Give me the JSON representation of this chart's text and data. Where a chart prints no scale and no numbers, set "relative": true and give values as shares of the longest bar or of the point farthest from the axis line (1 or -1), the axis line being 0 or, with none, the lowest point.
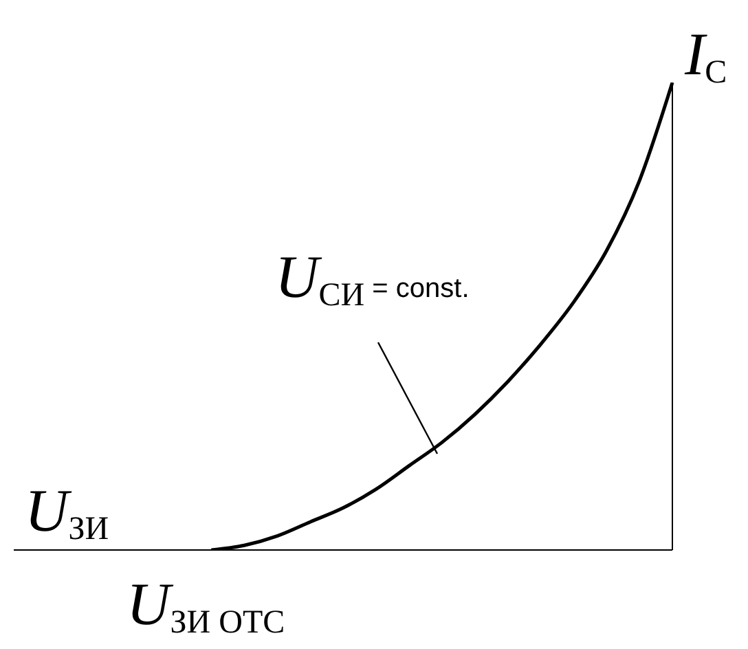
{
  "chart_data": {
    "type": "line",
    "relative": true,
    "xlabel": "U$_{ЗИ}$",
    "ylabel": "I$_{C}$",
    "annotations": [
      "U$_{СИ}$ = const.",
      "U$_{ЗИ ОТС}$"
    ],
    "categories": [
      null,
      null,
      null,
      null,
      null,
      null,
      null,
      null,
      null,
      null,
      null,
      null,
      null,
      null,
      null,
      null,
      null,
      null,
      null,
      null,
      null
    ],
    "series": [
      {
        "color": "#000000",
        "values": [
          null,
          null,
          null,
          null,
          null,
          null,
          0,
          0.01,
          0.03,
          0.06,
          0.09,
          0.13,
          0.18,
          0.23,
          0.29,
          0.36,
          0.44,
          0.53,
          0.64,
          0.79,
          1.0
        ]
      }
    ],
    "grid": false,
    "marker": "none",
    "line_style": "solid"
  }
}
